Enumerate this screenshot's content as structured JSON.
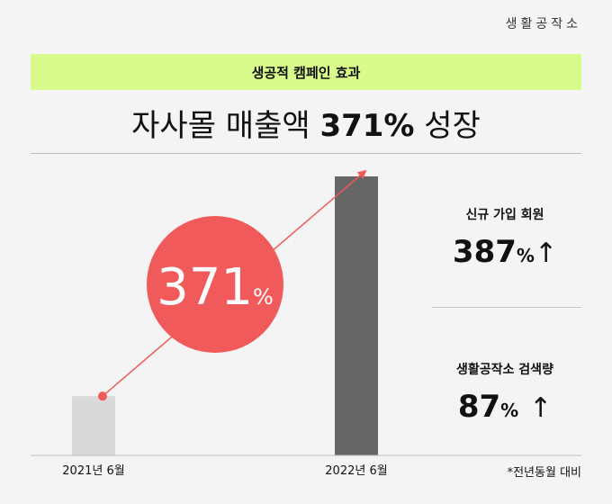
{
  "brand": "생활공작소",
  "banner": "생공적 캠페인 효과",
  "headline": {
    "prefix": "자사몰 매출액 ",
    "highlight": "371%",
    "suffix": " 성장"
  },
  "badge": {
    "number": "371",
    "unit": "%"
  },
  "stats": [
    {
      "label": "신규 가입 회원",
      "value": "387",
      "unit": "%",
      "arrow": "↑"
    },
    {
      "label": "생활공작소 검색량",
      "value": "87",
      "unit": "%",
      "arrow": "↑"
    }
  ],
  "footnote": "*전년동월 대비",
  "colors": {
    "banner": "#d8fb8c",
    "accent": "#f15a5a",
    "bar_2021": "#d9d9d9",
    "bar_2022": "#666666"
  },
  "chart_data": {
    "type": "bar",
    "categories": [
      "2021년 6월",
      "2022년 6월"
    ],
    "values": [
      100,
      471
    ],
    "unit": "index (2021년 6월 = 100)",
    "growth_percent": 371,
    "title": "자사몰 매출액 371% 성장",
    "xlabel": "",
    "ylabel": "",
    "ylim": [
      0,
      471
    ],
    "grid": false,
    "legend": "none"
  }
}
